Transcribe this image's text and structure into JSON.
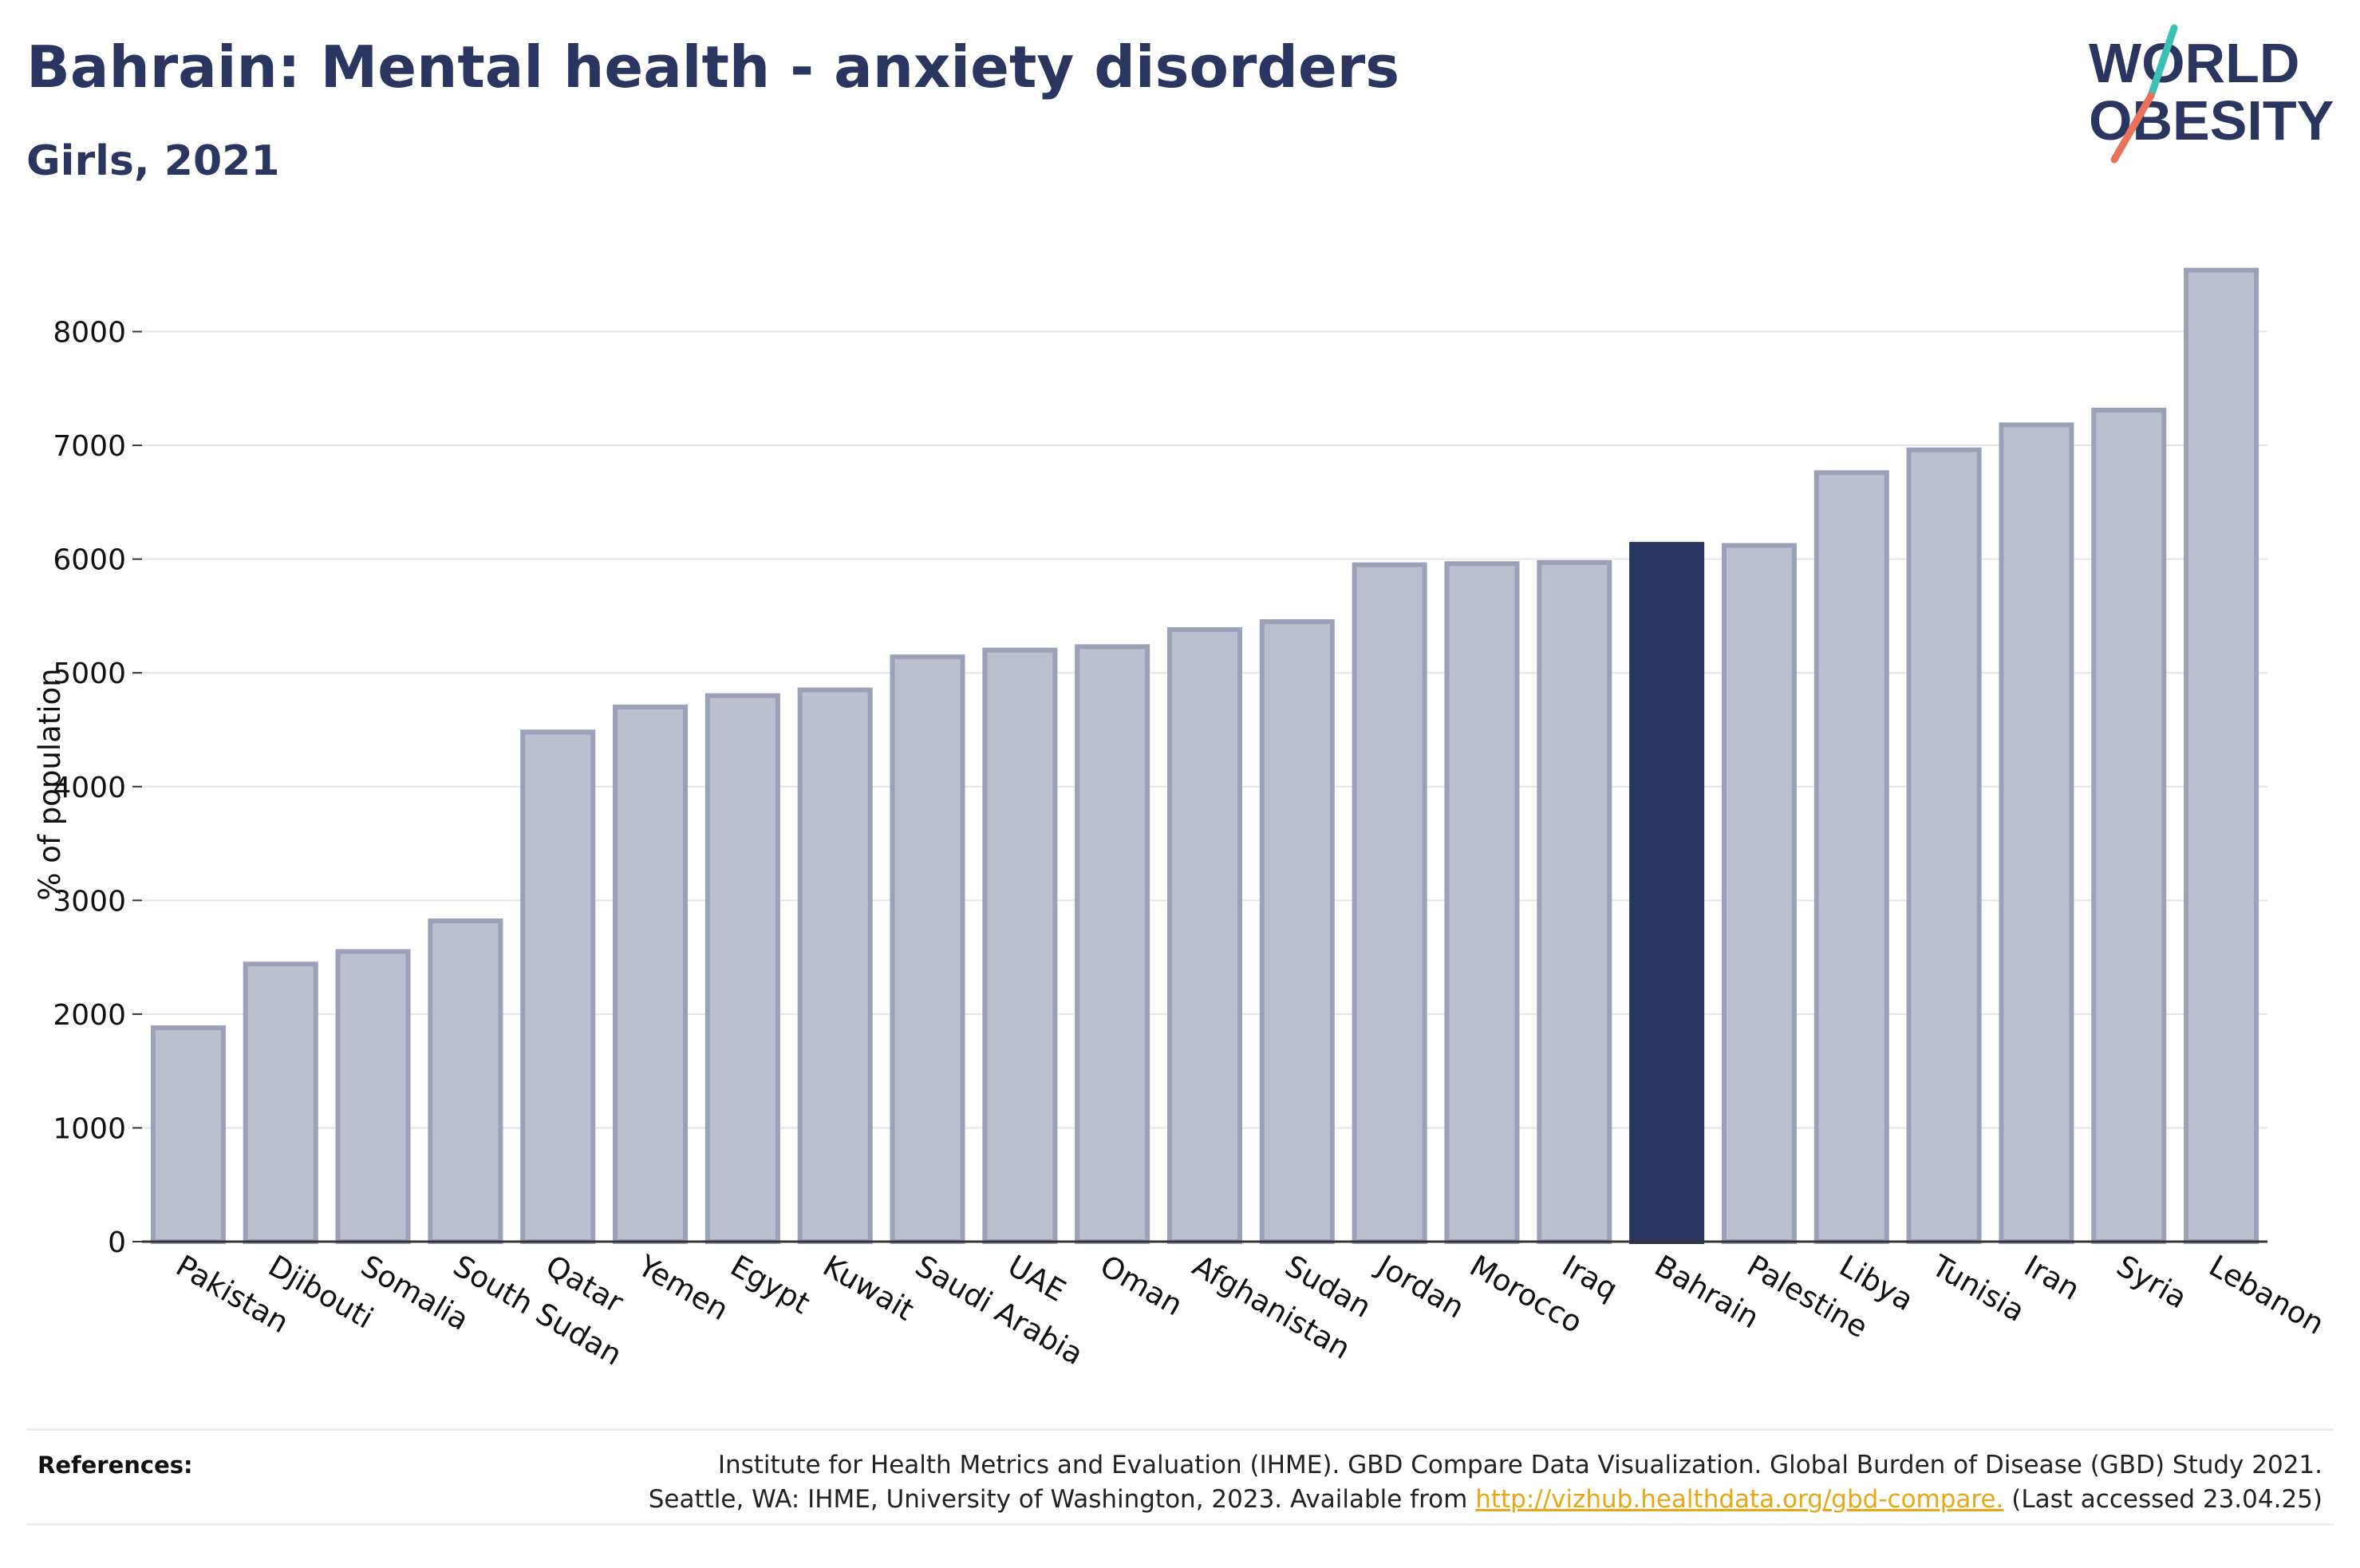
{
  "header": {
    "title": "Bahrain: Mental health - anxiety disorders",
    "subtitle": "Girls, 2021"
  },
  "logo": {
    "line1": "WORLD",
    "line2": "OBESITY",
    "colors": {
      "text": "#2a3560",
      "slash_teal": "#3cbfb4",
      "slash_coral": "#e8735a"
    }
  },
  "chart_data": {
    "type": "bar",
    "title": "",
    "xlabel": "",
    "ylabel": "% of population",
    "ylim": [
      0,
      8600
    ],
    "yticks": [
      0,
      1000,
      2000,
      3000,
      4000,
      5000,
      6000,
      7000,
      8000
    ],
    "grid": true,
    "highlight": "Bahrain",
    "colors": {
      "bar": "#bcbfcd",
      "bar_edge": "#9ba1b8",
      "highlight": "#2a3560"
    },
    "categories": [
      "Pakistan",
      "Djibouti",
      "Somalia",
      "South Sudan",
      "Qatar",
      "Yemen",
      "Egypt",
      "Kuwait",
      "Saudi Arabia",
      "UAE",
      "Oman",
      "Afghanistan",
      "Sudan",
      "Jordan",
      "Morocco",
      "Iraq",
      "Bahrain",
      "Palestine",
      "Libya",
      "Tunisia",
      "Iran",
      "Syria",
      "Lebanon"
    ],
    "values": [
      1880,
      2440,
      2550,
      2820,
      4480,
      4700,
      4800,
      4850,
      5140,
      5200,
      5230,
      5380,
      5450,
      5950,
      5960,
      5970,
      6130,
      6120,
      6760,
      6960,
      7180,
      7310,
      8540
    ]
  },
  "references": {
    "label": "References:",
    "line1": "Institute for Health Metrics and Evaluation (IHME). GBD Compare Data Visualization. Global Burden of Disease (GBD) Study 2021.",
    "line2_prefix": "Seattle, WA: IHME, University of Washington, 2023. Available from ",
    "link": "http://vizhub.healthdata.org/gbd-compare.",
    "line2_suffix": " (Last accessed 23.04.25)"
  }
}
